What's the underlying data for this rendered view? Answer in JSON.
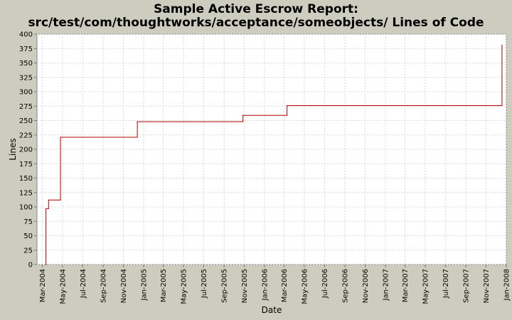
{
  "chart_data": {
    "type": "line",
    "title": "Sample Active Escrow Report:",
    "subtitle": "src/test/com/thoughtworks/acceptance/someobjects/ Lines of Code",
    "xlabel": "Date",
    "ylabel": "Lines",
    "ylim": [
      0,
      400
    ],
    "yticks": [
      0,
      25,
      50,
      75,
      100,
      125,
      150,
      175,
      200,
      225,
      250,
      275,
      300,
      325,
      350,
      375,
      400
    ],
    "xlim": [
      "2004-02-14",
      "2008-01-01"
    ],
    "xticks": [
      {
        "date": "2004-03-01",
        "label": "Mar-2004"
      },
      {
        "date": "2004-05-01",
        "label": "May-2004"
      },
      {
        "date": "2004-07-01",
        "label": "Jul-2004"
      },
      {
        "date": "2004-09-01",
        "label": "Sep-2004"
      },
      {
        "date": "2004-11-01",
        "label": "Nov-2004"
      },
      {
        "date": "2005-01-01",
        "label": "Jan-2005"
      },
      {
        "date": "2005-03-01",
        "label": "Mar-2005"
      },
      {
        "date": "2005-05-01",
        "label": "May-2005"
      },
      {
        "date": "2005-07-01",
        "label": "Jul-2005"
      },
      {
        "date": "2005-09-01",
        "label": "Sep-2005"
      },
      {
        "date": "2005-11-01",
        "label": "Nov-2005"
      },
      {
        "date": "2006-01-01",
        "label": "Jan-2006"
      },
      {
        "date": "2006-03-01",
        "label": "Mar-2006"
      },
      {
        "date": "2006-05-01",
        "label": "May-2006"
      },
      {
        "date": "2006-07-01",
        "label": "Jul-2006"
      },
      {
        "date": "2006-09-01",
        "label": "Sep-2006"
      },
      {
        "date": "2006-11-01",
        "label": "Nov-2006"
      },
      {
        "date": "2007-01-01",
        "label": "Jan-2007"
      },
      {
        "date": "2007-03-01",
        "label": "Mar-2007"
      },
      {
        "date": "2007-05-01",
        "label": "May-2007"
      },
      {
        "date": "2007-07-01",
        "label": "Jul-2007"
      },
      {
        "date": "2007-09-01",
        "label": "Sep-2007"
      },
      {
        "date": "2007-11-01",
        "label": "Nov-2007"
      },
      {
        "date": "2008-01-01",
        "label": "Jan-2008"
      }
    ],
    "grid": true,
    "step": true,
    "series": [
      {
        "color": "#b30000",
        "points": [
          {
            "x": "2004-03-12",
            "y": 0
          },
          {
            "x": "2004-03-12",
            "y": 97
          },
          {
            "x": "2004-03-20",
            "y": 97
          },
          {
            "x": "2004-03-20",
            "y": 112
          },
          {
            "x": "2004-04-25",
            "y": 112
          },
          {
            "x": "2004-04-25",
            "y": 221
          },
          {
            "x": "2004-12-13",
            "y": 221
          },
          {
            "x": "2004-12-13",
            "y": 248
          },
          {
            "x": "2005-10-28",
            "y": 248
          },
          {
            "x": "2005-10-28",
            "y": 259
          },
          {
            "x": "2006-03-10",
            "y": 259
          },
          {
            "x": "2006-03-10",
            "y": 276
          },
          {
            "x": "2007-12-19",
            "y": 276
          },
          {
            "x": "2007-12-19",
            "y": 381
          }
        ]
      }
    ]
  }
}
